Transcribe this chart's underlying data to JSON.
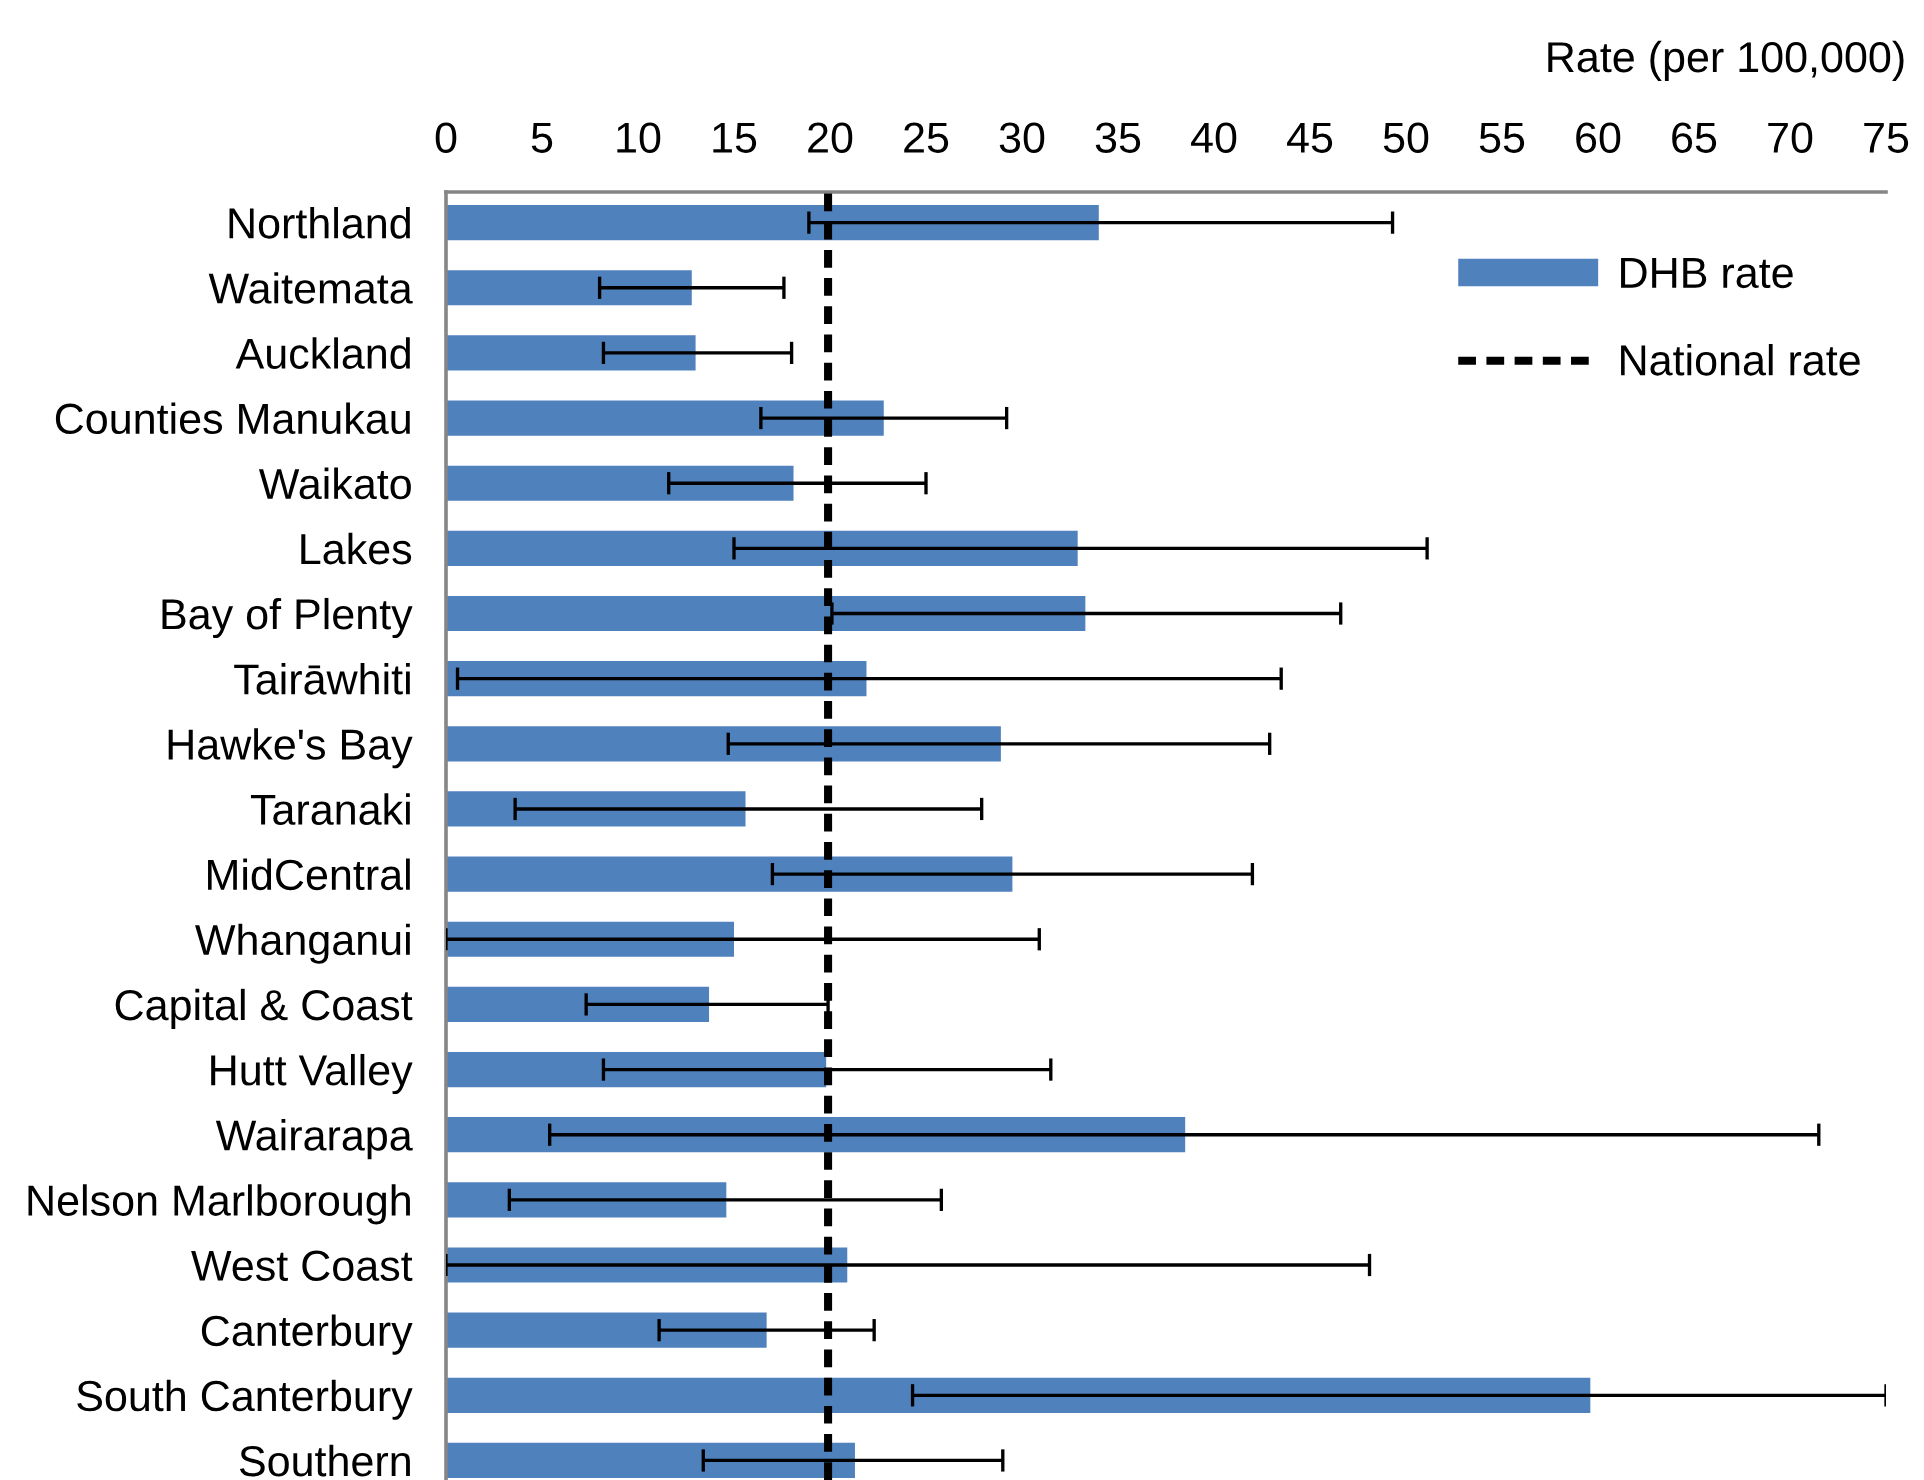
{
  "chart_data": {
    "type": "bar",
    "orientation": "horizontal",
    "xlabel": "Rate (per 100,000)",
    "categories": [
      "Northland",
      "Waitemata",
      "Auckland",
      "Counties Manukau",
      "Waikato",
      "Lakes",
      "Bay of Plenty",
      "Tairāwhiti",
      "Hawke's Bay",
      "Taranaki",
      "MidCentral",
      "Whanganui",
      "Capital & Coast",
      "Hutt Valley",
      "Wairarapa",
      "Nelson Marlborough",
      "West Coast",
      "Canterbury",
      "South Canterbury",
      "Southern"
    ],
    "series": [
      {
        "name": "DHB rate",
        "color": "#4f81bd",
        "values": [
          34.0,
          12.8,
          13.0,
          22.8,
          18.1,
          32.9,
          33.3,
          21.9,
          28.9,
          15.6,
          29.5,
          15.0,
          13.7,
          19.8,
          38.5,
          14.6,
          20.9,
          16.7,
          59.6,
          21.3
        ],
        "errors": [
          [
            18.9,
            49.3
          ],
          [
            8.0,
            17.6
          ],
          [
            8.2,
            18.0
          ],
          [
            16.4,
            29.2
          ],
          [
            11.6,
            25.0
          ],
          [
            15.0,
            51.1
          ],
          [
            20.1,
            46.6
          ],
          [
            0.6,
            43.5
          ],
          [
            14.7,
            42.9
          ],
          [
            3.6,
            27.9
          ],
          [
            17.0,
            42.0
          ],
          [
            0,
            30.9
          ],
          [
            7.3,
            19.9
          ],
          [
            8.2,
            31.5
          ],
          [
            5.4,
            71.5
          ],
          [
            3.3,
            25.8
          ],
          [
            0,
            48.1
          ],
          [
            11.1,
            22.3
          ],
          [
            24.3,
            75
          ],
          [
            13.4,
            29.0
          ]
        ]
      }
    ],
    "xlim": [
      0,
      75
    ],
    "xticks": [
      0,
      5,
      10,
      15,
      20,
      25,
      30,
      35,
      40,
      45,
      50,
      55,
      60,
      65,
      70,
      75
    ],
    "ref_lines": [
      {
        "axis": "x",
        "value": 19.9,
        "label": "National rate",
        "color": "#000000",
        "line_style": "dashed"
      }
    ],
    "legend": "top right"
  }
}
